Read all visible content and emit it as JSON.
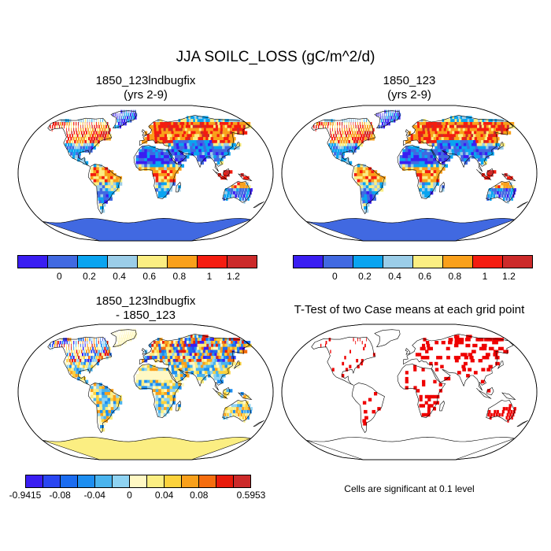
{
  "title": "JJA SOILC_LOSS (gC/m^2/d)",
  "panels": {
    "tl": {
      "title1": "1850_123lndbugfix",
      "title2": "(yrs 2-9)"
    },
    "tr": {
      "title1": "1850_123",
      "title2": "(yrs 2-9)"
    },
    "bl": {
      "title1": "1850_123lndbugfix",
      "title2": "- 1850_123"
    },
    "br": {
      "title1": "T-Test of two Case means at each grid point",
      "note": "Cells are significant at 0.1 level"
    }
  },
  "colorbar_top": {
    "colors": [
      "#3a1ef2",
      "#4169e1",
      "#0aa4f0",
      "#9bcde8",
      "#fbee82",
      "#f9a01b",
      "#f41d10",
      "#cc2a2a"
    ],
    "labels": [
      "0",
      "0.2",
      "0.4",
      "0.6",
      "0.8",
      "1",
      "1.2"
    ]
  },
  "colorbar_diff": {
    "colors": [
      "#3a1ef2",
      "#2a46f2",
      "#1b6cf0",
      "#1d8ef0",
      "#4ab4ee",
      "#8fd3f2",
      "#fff8c4",
      "#fbee82",
      "#fcd23c",
      "#f9a01b",
      "#f56d0e",
      "#e81b0b",
      "#cc2a2a"
    ],
    "labels": [
      "-0.9415",
      "-0.08",
      "-0.04",
      "0",
      "0.04",
      "0.08",
      "0.5953"
    ]
  },
  "significance_color": "#ee0000",
  "ocean_color": "#ffffff",
  "coast_color": "#000000"
}
